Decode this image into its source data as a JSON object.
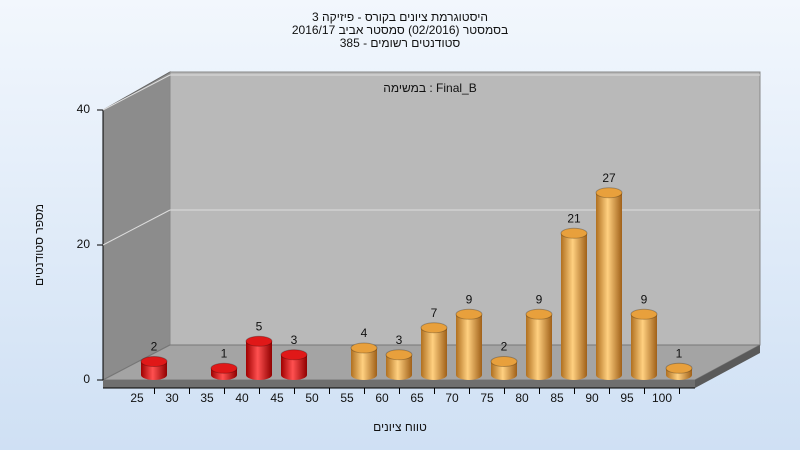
{
  "chart_data": {
    "type": "bar3d",
    "title": [
      "היסטוגרמת ציונים בקורס - פיזיקה 3",
      "בסמסטר  (02/2016)  סמסטר אביב 2016/17",
      "385 - סטודנטים רשומים"
    ],
    "annotation": "במשימה : Final_B",
    "xlabel": "טווח ציונים",
    "ylabel": "מספר סטודנטים",
    "categories": [
      "25",
      "30",
      "35",
      "40",
      "45",
      "50",
      "55",
      "60",
      "65",
      "70",
      "75",
      "80",
      "85",
      "90",
      "95",
      "100"
    ],
    "values": [
      2,
      null,
      1,
      5,
      3,
      null,
      4,
      3,
      7,
      9,
      2,
      9,
      21,
      27,
      9,
      1
    ],
    "colors": [
      "#e01818",
      null,
      "#e01818",
      "#e01818",
      "#e01818",
      null,
      "#e8a03c",
      "#e8a03c",
      "#e8a03c",
      "#e8a03c",
      "#e8a03c",
      "#e8a03c",
      "#e8a03c",
      "#e8a03c",
      "#e8a03c",
      "#e8a03c"
    ],
    "ylim": [
      0,
      40
    ],
    "yticks": [
      0,
      20,
      40
    ],
    "grid": true
  }
}
